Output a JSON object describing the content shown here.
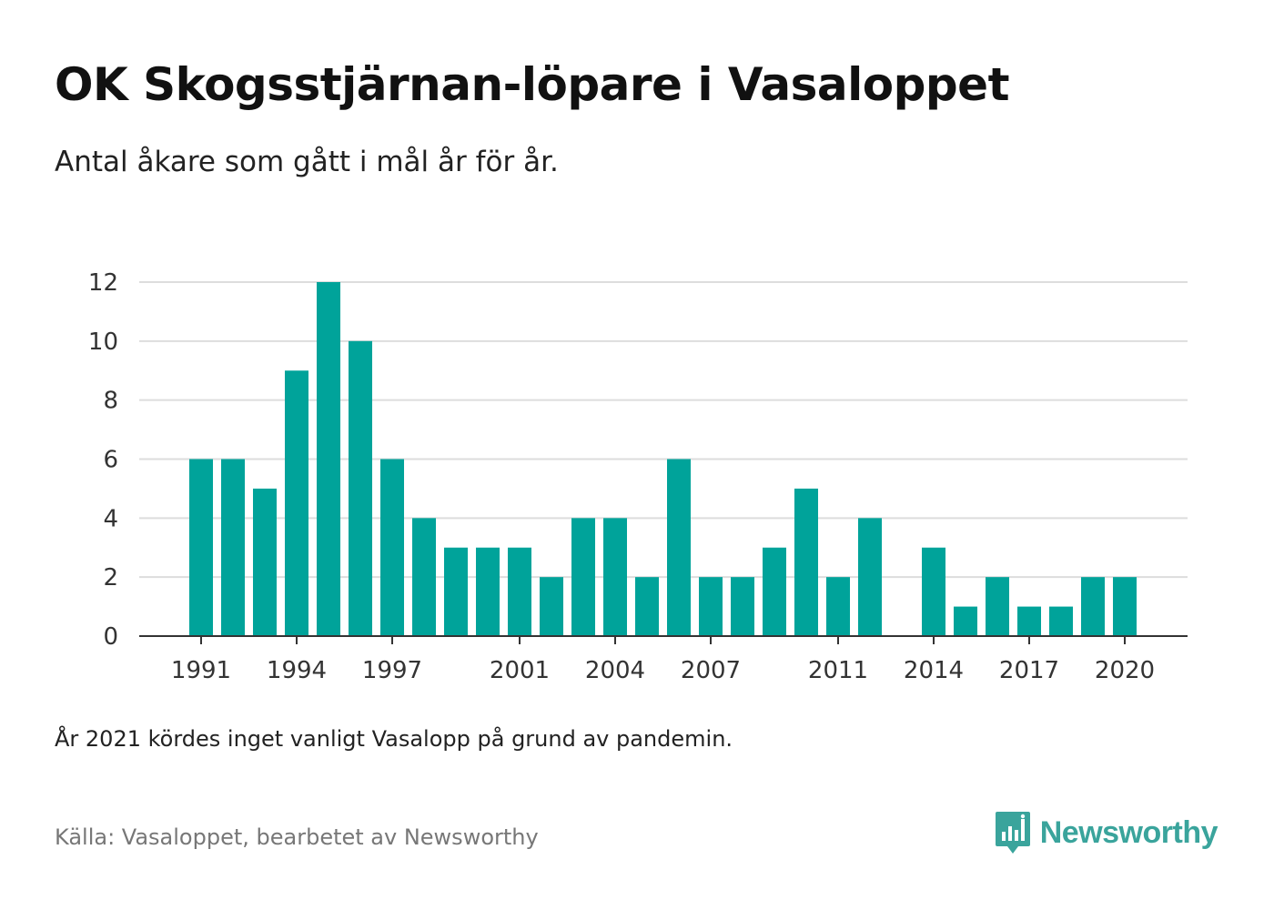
{
  "title": "OK Skogsstjärnan-löpare i Vasaloppet",
  "subtitle": "Antal åkare som gått i mål år för år.",
  "note": "År 2021 kördes inget vanligt Vasalopp på grund av pandemin.",
  "source": "Källa: Vasaloppet, bearbetet av Newsworthy",
  "brand": {
    "name": "Newsworthy",
    "icon": "newsworthy-logo-icon",
    "color": "#3aa49c"
  },
  "chart_data": {
    "type": "bar",
    "categories": [
      "1991",
      "1992",
      "1993",
      "1994",
      "1995",
      "1996",
      "1997",
      "1998",
      "1999",
      "2000",
      "2001",
      "2002",
      "2003",
      "2004",
      "2005",
      "2006",
      "2007",
      "2008",
      "2009",
      "2010",
      "2011",
      "2012",
      "2013",
      "2014",
      "2015",
      "2016",
      "2017",
      "2018",
      "2019",
      "2020"
    ],
    "values": [
      6,
      6,
      5,
      9,
      12,
      10,
      6,
      4,
      3,
      3,
      3,
      2,
      4,
      4,
      2,
      6,
      2,
      2,
      3,
      5,
      2,
      4,
      0,
      3,
      1,
      2,
      1,
      1,
      2,
      2
    ],
    "x_tick_labels": [
      "1991",
      "1994",
      "1997",
      "2001",
      "2004",
      "2007",
      "2011",
      "2014",
      "2017",
      "2020"
    ],
    "y_ticks": [
      0,
      2,
      4,
      6,
      8,
      10,
      12
    ],
    "ylim": [
      0,
      12
    ],
    "grid": true,
    "bar_color": "#00a39a",
    "gridline_color": "#dddddd",
    "axis_color": "#333333"
  }
}
